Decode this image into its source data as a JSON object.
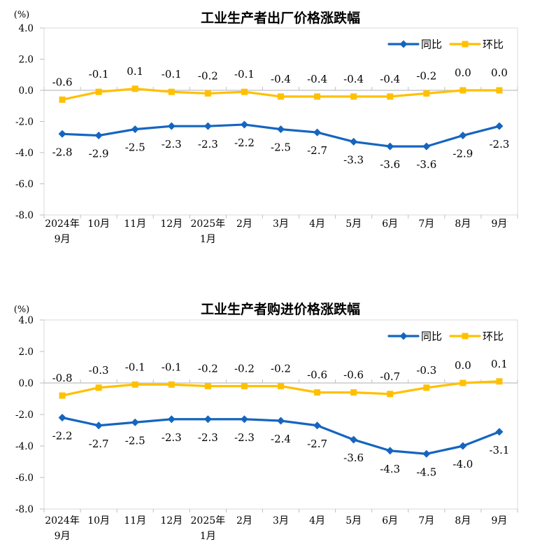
{
  "page": {
    "background": "#ffffff"
  },
  "colors": {
    "yoy_blue": "#1565C0",
    "mom_yellow": "#FFC000",
    "plot_border": "#D9D9D9",
    "axis_line": "#BFBFBF",
    "text": "#000000"
  },
  "chart_data": [
    {
      "type": "line",
      "title": "工业生产者出厂价格涨跌幅",
      "unit_label": "(%)",
      "categories": [
        "2024年\n9月",
        "10月",
        "11月",
        "12月",
        "2025年\n1月",
        "2月",
        "3月",
        "4月",
        "5月",
        "6月",
        "7月",
        "8月",
        "9月"
      ],
      "ylim": [
        -8.0,
        4.0
      ],
      "ytick_step": 2.0,
      "ytick_labels": [
        "4.0",
        "2.0",
        "0.0",
        "-2.0",
        "-4.0",
        "-6.0",
        "-8.0"
      ],
      "grid": false,
      "legend_position": "top-right",
      "series": [
        {
          "name": "同比",
          "color": "#1565C0",
          "marker": "diamond",
          "label_position": "below",
          "values": [
            -2.8,
            -2.9,
            -2.5,
            -2.3,
            -2.3,
            -2.2,
            -2.5,
            -2.7,
            -3.3,
            -3.6,
            -3.6,
            -2.9,
            -2.3
          ]
        },
        {
          "name": "环比",
          "color": "#FFC000",
          "marker": "square",
          "label_position": "above",
          "values": [
            -0.6,
            -0.1,
            0.1,
            -0.1,
            -0.2,
            -0.1,
            -0.4,
            -0.4,
            -0.4,
            -0.4,
            -0.2,
            0.0,
            0.0
          ]
        }
      ]
    },
    {
      "type": "line",
      "title": "工业生产者购进价格涨跌幅",
      "unit_label": "(%)",
      "categories": [
        "2024年\n9月",
        "10月",
        "11月",
        "12月",
        "2025年\n1月",
        "2月",
        "3月",
        "4月",
        "5月",
        "6月",
        "7月",
        "8月",
        "9月"
      ],
      "ylim": [
        -8.0,
        4.0
      ],
      "ytick_step": 2.0,
      "ytick_labels": [
        "4.0",
        "2.0",
        "0.0",
        "-2.0",
        "-4.0",
        "-6.0",
        "-8.0"
      ],
      "grid": false,
      "legend_position": "top-right",
      "series": [
        {
          "name": "同比",
          "color": "#1565C0",
          "marker": "diamond",
          "label_position": "below",
          "values": [
            -2.2,
            -2.7,
            -2.5,
            -2.3,
            -2.3,
            -2.3,
            -2.4,
            -2.7,
            -3.6,
            -4.3,
            -4.5,
            -4.0,
            -3.1
          ]
        },
        {
          "name": "环比",
          "color": "#FFC000",
          "marker": "square",
          "label_position": "above",
          "values": [
            -0.8,
            -0.3,
            -0.1,
            -0.1,
            -0.2,
            -0.2,
            -0.2,
            -0.6,
            -0.6,
            -0.7,
            -0.3,
            0.0,
            0.1
          ]
        }
      ]
    }
  ]
}
